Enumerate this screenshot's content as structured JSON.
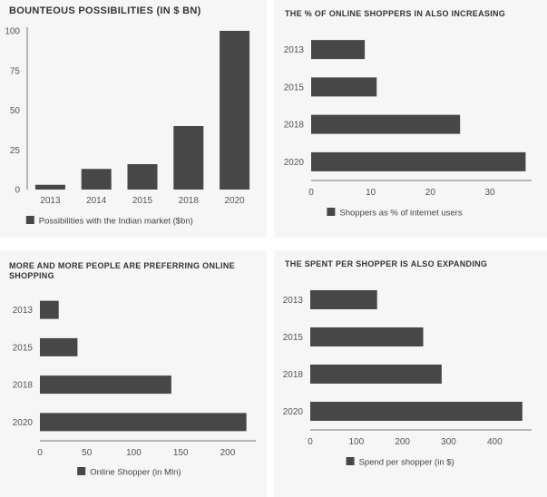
{
  "chart_data": [
    {
      "type": "bar",
      "title": "BOUNTEOUS POSSIBILITIES (IN $ BN)",
      "categories": [
        "2013",
        "2014",
        "2015",
        "2018",
        "2020"
      ],
      "series": [
        {
          "name": "Possibilities with the Indian market ($bn)",
          "values": [
            3,
            13,
            16,
            40,
            100
          ]
        }
      ],
      "yticks": [
        "0",
        "25",
        "50",
        "75",
        "100"
      ],
      "ylim": [
        0,
        100
      ],
      "grid": false,
      "legend": "bottom",
      "color": "#474747"
    },
    {
      "type": "bar",
      "orientation": "horizontal",
      "title": "THE % OF ONLINE SHOPPERS IN ALSO INCREASING",
      "categories": [
        "2013",
        "2015",
        "2018",
        "2020"
      ],
      "series": [
        {
          "name": "Shoppers as % of internet users",
          "values": [
            9,
            11,
            25,
            36
          ]
        }
      ],
      "xticks": [
        "0",
        "10",
        "20",
        "30"
      ],
      "xlim": [
        0,
        37
      ],
      "grid": false,
      "legend": "bottom",
      "color": "#474747"
    },
    {
      "type": "bar",
      "orientation": "horizontal",
      "title": "MORE AND MORE PEOPLE ARE PREFERRING ONLINE SHOPPING",
      "categories": [
        "2013",
        "2015",
        "2018",
        "2020"
      ],
      "series": [
        {
          "name": "Online Shopper (in Mln)",
          "values": [
            20,
            40,
            140,
            220
          ]
        }
      ],
      "xticks": [
        "0",
        "50",
        "100",
        "150",
        "200"
      ],
      "xlim": [
        0,
        230
      ],
      "grid": false,
      "legend": "bottom",
      "color": "#474747"
    },
    {
      "type": "bar",
      "orientation": "horizontal",
      "title": "THE SPENT PER SHOPPER IS ALSO EXPANDING",
      "categories": [
        "2013",
        "2015",
        "2018",
        "2020"
      ],
      "series": [
        {
          "name": "Spend per shopper (in $)",
          "values": [
            145,
            245,
            285,
            460
          ]
        }
      ],
      "xticks": [
        "0",
        "100",
        "200",
        "300",
        "400"
      ],
      "xlim": [
        0,
        480
      ],
      "grid": false,
      "legend": "bottom",
      "color": "#474747"
    }
  ]
}
